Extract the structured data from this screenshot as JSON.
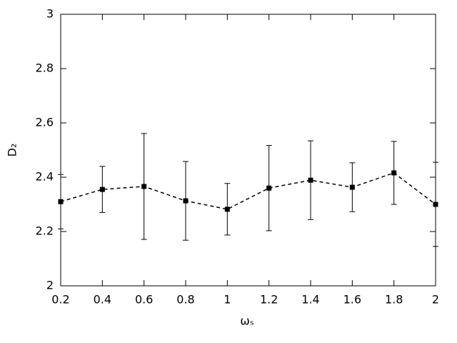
{
  "chart_data": {
    "type": "line",
    "xlabel": "ωₛ",
    "ylabel": "D₂",
    "x": [
      0.2,
      0.4,
      0.6,
      0.8,
      1.0,
      1.2,
      1.4,
      1.6,
      1.8,
      2.0
    ],
    "series": [
      {
        "color": "#000000",
        "values": [
          2.31,
          2.355,
          2.366,
          2.313,
          2.282,
          2.36,
          2.389,
          2.363,
          2.416,
          2.3
        ],
        "errors": [
          0.1,
          0.085,
          0.195,
          0.145,
          0.095,
          0.157,
          0.145,
          0.09,
          0.116,
          0.155
        ]
      }
    ],
    "xlim": [
      0.2,
      2
    ],
    "xticks": [
      0.2,
      0.4,
      0.6,
      0.8,
      1,
      1.2,
      1.4,
      1.6,
      1.8,
      2
    ],
    "ylim": [
      2,
      3
    ],
    "yticks": [
      2,
      2.2,
      2.4,
      2.6,
      2.8,
      3
    ]
  }
}
